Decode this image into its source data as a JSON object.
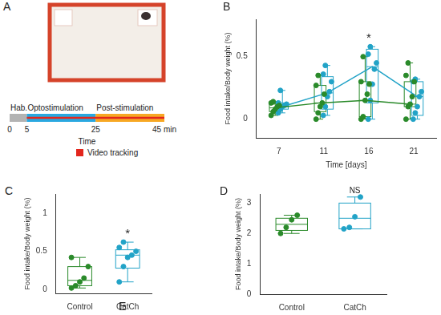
{
  "panel_a": {
    "title": "A",
    "timeline": {
      "segments": [
        {
          "label": "Hab.",
          "start": 0,
          "end": 5,
          "color": "#b3b3b3"
        },
        {
          "label": "Optostimulation",
          "start": 5,
          "end": 25,
          "color": "#29a8e0"
        },
        {
          "label": "Post-stimulation",
          "start": 25,
          "end": 45,
          "color": "#f7a823"
        }
      ],
      "xlim": [
        0,
        45
      ],
      "xticks": [
        0,
        5,
        25,
        {
          "value": 45,
          "label": "45 min"
        }
      ],
      "x_label": "Time",
      "tracking": {
        "label": "Video tracking",
        "start": 5,
        "end": 45,
        "color": "#e3261d"
      }
    }
  },
  "chart_data": [
    {
      "title": "B",
      "type": "box",
      "categories": [
        "7",
        "11",
        "16",
        "21"
      ],
      "x_label": "Time [days]",
      "y_label": "Food intake/Body weight (%)",
      "ylim": [
        -0.15,
        0.8
      ],
      "yticks": [
        0,
        0.5
      ],
      "grid": false,
      "series": [
        {
          "color": "#2a8a2a",
          "line_style": "solid",
          "boxes": [
            {
              "min": 0.03,
              "q1": 0.06,
              "median": 0.09,
              "q3": 0.12,
              "max": 0.14
            },
            {
              "min": 0,
              "q1": 0.06,
              "median": 0.13,
              "q3": 0.27,
              "max": 0.35
            },
            {
              "min": 0,
              "q1": 0.02,
              "median": 0.15,
              "q3": 0.3,
              "max": 0.5
            },
            {
              "min": 0,
              "q1": 0.1,
              "median": 0.12,
              "q3": 0.3,
              "max": 0.45
            }
          ],
          "points": [
            [
              0.03,
              0.06,
              0.08,
              0.1,
              0.11,
              0.13,
              0.14
            ],
            [
              0,
              0.05,
              0.1,
              0.13,
              0.2,
              0.27,
              0.35
            ],
            [
              0,
              0.02,
              0.15,
              0.2,
              0.28,
              0.3,
              0.5
            ],
            [
              0,
              0.1,
              0.12,
              0.18,
              0.3,
              0.35,
              0.45
            ]
          ]
        },
        {
          "color": "#22a3c7",
          "line_style": "solid",
          "boxes": [
            {
              "min": 0.05,
              "q1": 0.08,
              "median": 0.1,
              "q3": 0.13,
              "max": 0.23
            },
            {
              "min": 0.03,
              "q1": 0.08,
              "median": 0.21,
              "q3": 0.34,
              "max": 0.43
            },
            {
              "min": 0,
              "q1": 0.13,
              "median": 0.42,
              "q3": 0.56,
              "max": 0.58
            },
            {
              "min": 0,
              "q1": 0.03,
              "median": 0.18,
              "q3": 0.3,
              "max": 0.32
            }
          ],
          "points": [
            [
              0.05,
              0.08,
              0.1,
              0.11,
              0.12,
              0.13,
              0.23
            ],
            [
              0.03,
              0.1,
              0.18,
              0.22,
              0.3,
              0.36,
              0.43
            ],
            [
              0,
              0.15,
              0.28,
              0.4,
              0.45,
              0.52,
              0.58
            ],
            [
              0,
              0.05,
              0.1,
              0.18,
              0.22,
              0.3,
              0.32
            ]
          ]
        }
      ],
      "annotations": [
        {
          "text": "*",
          "category": "16"
        }
      ]
    },
    {
      "title": "C",
      "type": "box",
      "categories": [
        "Control",
        "CatCh"
      ],
      "y_label": "Food intake/Body weight (%)",
      "ylim": [
        -0.05,
        1.25
      ],
      "yticks": [
        0,
        0.5,
        1
      ],
      "grid": false,
      "series": [
        {
          "colors": [
            "#2a8a2a",
            "#22a3c7"
          ],
          "boxes": [
            {
              "min": 0.02,
              "q1": 0.05,
              "median": 0.12,
              "q3": 0.3,
              "max": 0.42
            },
            {
              "min": 0.1,
              "q1": 0.28,
              "median": 0.45,
              "q3": 0.52,
              "max": 0.62
            }
          ],
          "points": [
            [
              0.02,
              0.05,
              0.1,
              0.15,
              0.3,
              0.42
            ],
            [
              0.1,
              0.3,
              0.42,
              0.45,
              0.5,
              0.55,
              0.62
            ]
          ]
        }
      ],
      "annotations": [
        {
          "text": "*",
          "category": "CatCh"
        }
      ]
    },
    {
      "title": "D",
      "type": "box",
      "categories": [
        "Control",
        "CatCh"
      ],
      "y_label": "Food intake/Body weight (%)",
      "ylim": [
        0,
        3.3
      ],
      "yticks": [
        0,
        1,
        2,
        3
      ],
      "grid": false,
      "series": [
        {
          "colors": [
            "#2a8a2a",
            "#22a3c7"
          ],
          "boxes": [
            {
              "min": 2.0,
              "q1": 2.1,
              "median": 2.3,
              "q3": 2.5,
              "max": 2.6
            },
            {
              "min": 2.15,
              "q1": 2.15,
              "median": 2.5,
              "q3": 3.0,
              "max": 3.2
            }
          ],
          "points": [
            [
              2.0,
              2.2,
              2.45,
              2.6
            ],
            [
              2.15,
              2.2,
              2.55,
              3.2
            ]
          ]
        }
      ],
      "annotations": [
        {
          "text": "NS",
          "category": "CatCh"
        }
      ]
    }
  ],
  "panel_e": {
    "title": "E"
  }
}
